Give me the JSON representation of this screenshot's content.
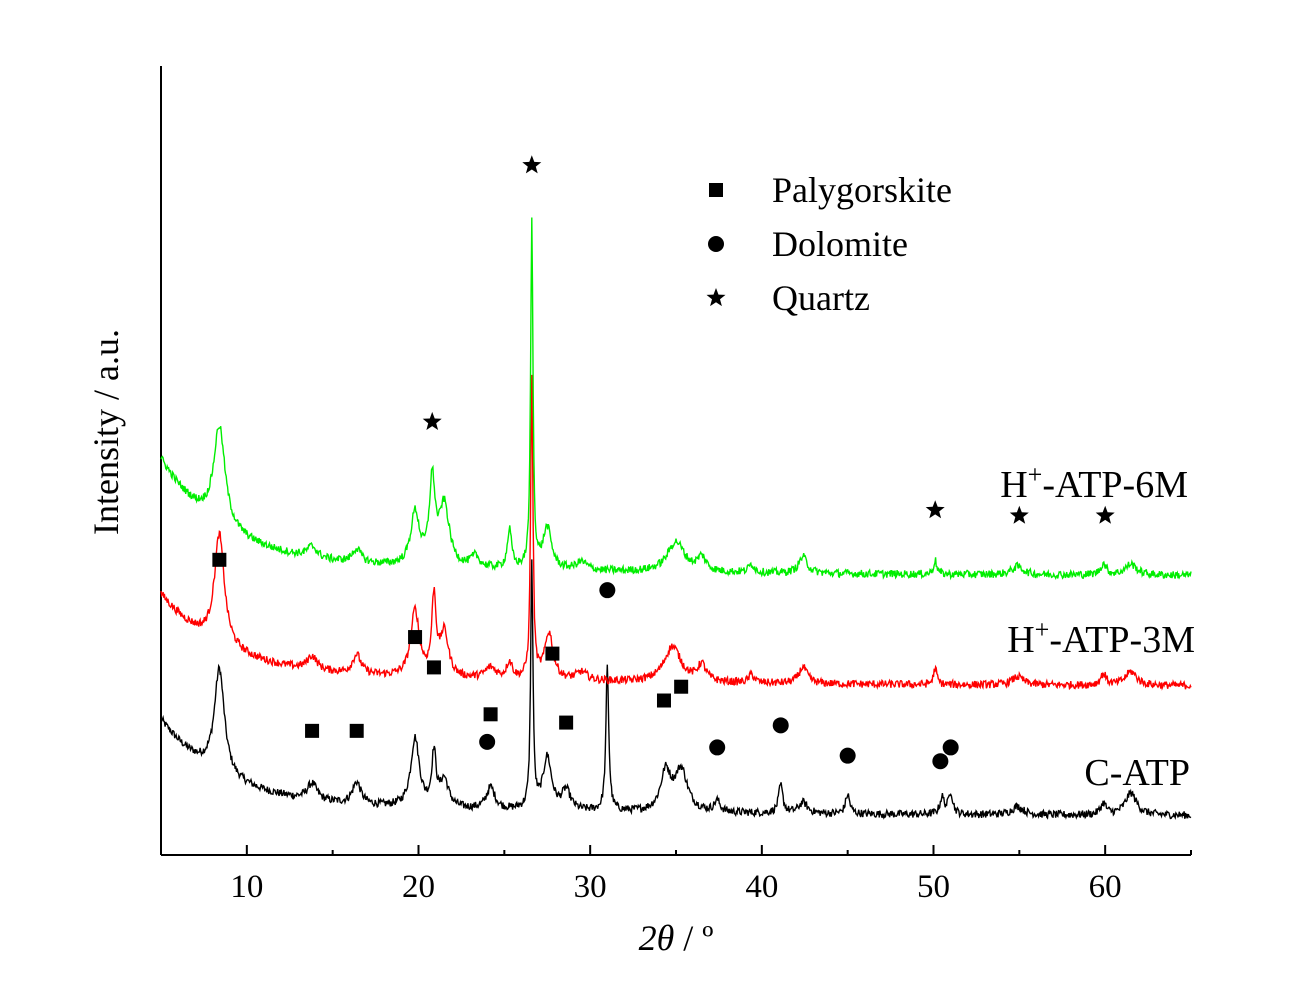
{
  "chart_data": {
    "type": "line",
    "xlabel_prefix": "2",
    "xlabel_theta": "θ",
    "xlabel_suffix": " / º",
    "ylabel": "Intensity / a.u.",
    "xlim": [
      5,
      65
    ],
    "xticks": [
      10,
      20,
      30,
      40,
      50,
      60
    ],
    "y_ticks_shown": false,
    "grid": false,
    "legend_position": "top-center",
    "legend": [
      {
        "marker": "square",
        "label": "Palygorskite"
      },
      {
        "marker": "circle",
        "label": "Dolomite"
      },
      {
        "marker": "star",
        "label": "Quartz"
      }
    ],
    "series": [
      {
        "name": "C-ATP",
        "label_main": "C-ATP",
        "label_superscript": "",
        "label_tail": "",
        "color": "#000000",
        "baseline": 0.08,
        "start": 0.3,
        "decay": 0.2,
        "peaks": [
          [
            8.4,
            0.38,
            0.35
          ],
          [
            13.8,
            0.06,
            0.35
          ],
          [
            16.4,
            0.08,
            0.3
          ],
          [
            19.8,
            0.25,
            0.3
          ],
          [
            20.9,
            0.19,
            0.15
          ],
          [
            21.5,
            0.1,
            0.3
          ],
          [
            24.2,
            0.08,
            0.3
          ],
          [
            26.6,
            0.88,
            0.08
          ],
          [
            27.5,
            0.19,
            0.3
          ],
          [
            28.6,
            0.07,
            0.3
          ],
          [
            31.0,
            0.52,
            0.1
          ],
          [
            34.4,
            0.14,
            0.35
          ],
          [
            35.3,
            0.15,
            0.45
          ],
          [
            37.4,
            0.04,
            0.2
          ],
          [
            41.1,
            0.1,
            0.15
          ],
          [
            42.4,
            0.04,
            0.3
          ],
          [
            45.0,
            0.07,
            0.15
          ],
          [
            50.5,
            0.06,
            0.15
          ],
          [
            51.0,
            0.08,
            0.15
          ],
          [
            54.9,
            0.03,
            0.4
          ],
          [
            59.9,
            0.04,
            0.2
          ],
          [
            61.5,
            0.08,
            0.4
          ]
        ],
        "markers": [
          {
            "type": "square",
            "x": 8.4,
            "y": 1.01
          },
          {
            "type": "square",
            "x": 13.8,
            "y": 0.39
          },
          {
            "type": "square",
            "x": 16.4,
            "y": 0.39
          },
          {
            "type": "square",
            "x": 19.8,
            "y": 0.73
          },
          {
            "type": "square",
            "x": 20.9,
            "y": 0.62
          },
          {
            "type": "square",
            "x": 24.2,
            "y": 0.45
          },
          {
            "type": "square",
            "x": 27.8,
            "y": 0.67
          },
          {
            "type": "square",
            "x": 28.6,
            "y": 0.42
          },
          {
            "type": "square",
            "x": 34.3,
            "y": 0.5
          },
          {
            "type": "square",
            "x": 35.3,
            "y": 0.55
          },
          {
            "type": "circle",
            "x": 24.0,
            "y": 0.35
          },
          {
            "type": "circle",
            "x": 31.0,
            "y": 0.9
          },
          {
            "type": "circle",
            "x": 37.4,
            "y": 0.33
          },
          {
            "type": "circle",
            "x": 41.1,
            "y": 0.41
          },
          {
            "type": "circle",
            "x": 45.0,
            "y": 0.3
          },
          {
            "type": "circle",
            "x": 50.4,
            "y": 0.28
          },
          {
            "type": "circle",
            "x": 51.0,
            "y": 0.33
          }
        ]
      },
      {
        "name": "H+-ATP-3M",
        "label_main": "H",
        "label_superscript": "+",
        "label_tail": "-ATP-3M",
        "color": "#ff0000",
        "baseline": 0.55,
        "start": 0.28,
        "decay": 0.22,
        "peaks": [
          [
            8.4,
            0.4,
            0.35
          ],
          [
            13.8,
            0.05,
            0.35
          ],
          [
            16.4,
            0.07,
            0.3
          ],
          [
            19.8,
            0.24,
            0.3
          ],
          [
            20.9,
            0.28,
            0.15
          ],
          [
            21.5,
            0.16,
            0.3
          ],
          [
            24.2,
            0.04,
            0.4
          ],
          [
            25.3,
            0.06,
            0.2
          ],
          [
            26.6,
            1.08,
            0.08
          ],
          [
            27.6,
            0.17,
            0.3
          ],
          [
            29.5,
            0.03,
            0.4
          ],
          [
            34.8,
            0.13,
            0.6
          ],
          [
            36.5,
            0.06,
            0.3
          ],
          [
            39.4,
            0.03,
            0.2
          ],
          [
            42.4,
            0.06,
            0.3
          ],
          [
            50.1,
            0.06,
            0.12
          ],
          [
            54.9,
            0.03,
            0.4
          ],
          [
            59.9,
            0.04,
            0.2
          ],
          [
            61.5,
            0.05,
            0.4
          ]
        ],
        "markers": []
      },
      {
        "name": "H+-ATP-6M",
        "label_main": "H",
        "label_superscript": "+",
        "label_tail": "-ATP-6M",
        "color": "#00ee00",
        "baseline": 0.95,
        "start": 0.37,
        "decay": 0.22,
        "peaks": [
          [
            8.4,
            0.36,
            0.4
          ],
          [
            13.8,
            0.04,
            0.35
          ],
          [
            16.4,
            0.05,
            0.3
          ],
          [
            19.8,
            0.19,
            0.3
          ],
          [
            20.8,
            0.3,
            0.2
          ],
          [
            21.5,
            0.22,
            0.35
          ],
          [
            23.3,
            0.04,
            0.3
          ],
          [
            25.3,
            0.14,
            0.15
          ],
          [
            26.6,
            1.25,
            0.08
          ],
          [
            27.5,
            0.15,
            0.3
          ],
          [
            29.5,
            0.03,
            0.4
          ],
          [
            35.0,
            0.11,
            0.6
          ],
          [
            36.5,
            0.05,
            0.3
          ],
          [
            39.4,
            0.03,
            0.2
          ],
          [
            42.4,
            0.06,
            0.3
          ],
          [
            50.1,
            0.05,
            0.12
          ],
          [
            54.9,
            0.03,
            0.4
          ],
          [
            59.9,
            0.04,
            0.2
          ],
          [
            61.5,
            0.04,
            0.4
          ]
        ],
        "markers": [
          {
            "type": "star",
            "x": 20.8,
            "y": 1.51
          },
          {
            "type": "star",
            "x": 26.6,
            "y": 2.44
          },
          {
            "type": "star",
            "x": 50.1,
            "y": 1.19
          },
          {
            "type": "star",
            "x": 55.0,
            "y": 1.17
          },
          {
            "type": "star",
            "x": 60.0,
            "y": 1.17
          }
        ]
      }
    ],
    "ylim": [
      -0.06,
      2.8
    ]
  }
}
